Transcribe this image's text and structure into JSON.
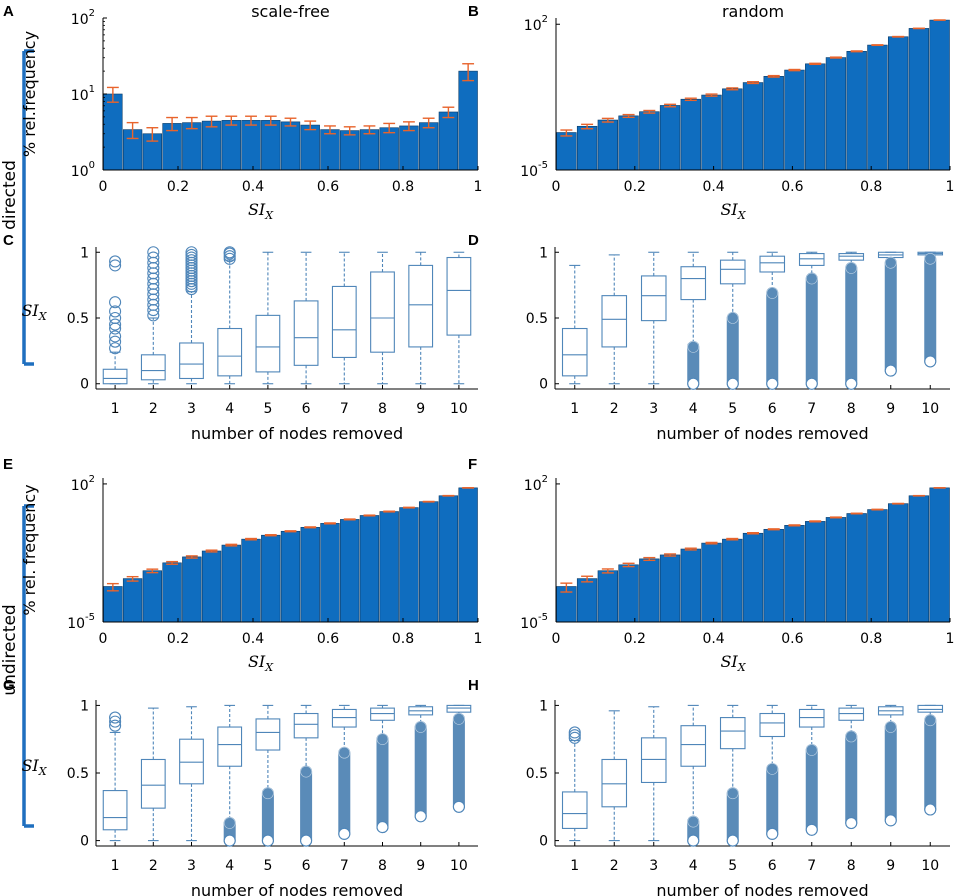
{
  "figure": {
    "row_labels": [
      "directed",
      "undirected"
    ],
    "bracket_color": "#1f6fbf",
    "bar_color": "#0f6dbf",
    "err_color": "#e8642c",
    "box_color": "#4f86b9",
    "out_color": "#5a8bb8"
  },
  "chart_data": [
    {
      "id": "A",
      "type": "bar",
      "panel_label": "A",
      "title": "scale-free",
      "scale": "log",
      "xlabel": "SI",
      "xlabel_sub": "X",
      "ylabel": "% rel.frequency",
      "xlim": [
        0,
        1
      ],
      "xticks": [
        "0",
        "0.2",
        "0.4",
        "0.6",
        "0.8",
        "1"
      ],
      "ylim_exp": [
        0,
        2
      ],
      "yticks": [
        {
          "base": "10",
          "exp": "0",
          "e": 0
        },
        {
          "base": "10",
          "exp": "1",
          "e": 1
        },
        {
          "base": "10",
          "exp": "2",
          "e": 2
        }
      ],
      "values": [
        10,
        3.4,
        3.0,
        4.1,
        4.2,
        4.4,
        4.5,
        4.5,
        4.5,
        4.3,
        3.9,
        3.4,
        3.3,
        3.4,
        3.6,
        3.8,
        4.2,
        5.8,
        20
      ],
      "errors": [
        2.2,
        0.8,
        0.6,
        0.8,
        0.7,
        0.7,
        0.6,
        0.6,
        0.6,
        0.5,
        0.5,
        0.4,
        0.4,
        0.4,
        0.5,
        0.5,
        0.6,
        0.9,
        5
      ]
    },
    {
      "id": "B",
      "type": "bar",
      "panel_label": "B",
      "title": "random",
      "scale": "log",
      "xlabel": "SI",
      "xlabel_sub": "X",
      "ylabel": "",
      "xlim": [
        0,
        1
      ],
      "xticks": [
        "0",
        "0.2",
        "0.4",
        "0.6",
        "0.8",
        "1"
      ],
      "ylim_exp": [
        -5,
        2.3
      ],
      "yticks": [
        {
          "base": "10",
          "exp": "-5",
          "e": -5
        },
        {
          "base": "10",
          "exp": "2",
          "e": 2
        }
      ],
      "values": [
        0.000631,
        0.001259,
        0.002512,
        0.003981,
        0.00631,
        0.01259,
        0.02512,
        0.0398,
        0.0794,
        0.1585,
        0.316,
        0.631,
        1.259,
        2.512,
        5.012,
        10,
        25.12,
        63.1,
        158.5
      ],
      "errors": [
        0.0002,
        0.0003,
        0.0005,
        0.0006,
        0.0009,
        0.0017,
        0.003,
        0.0045,
        0.008,
        0.015,
        0.025,
        0.04,
        0.07,
        0.12,
        0.2,
        0.3,
        0.6,
        1,
        2
      ]
    },
    {
      "id": "C",
      "type": "box",
      "panel_label": "C",
      "xlabel": "number of nodes removed",
      "ylabel": "SI",
      "ylabel_sub": "X",
      "ylim": [
        -0.04,
        1.04
      ],
      "yticks": [
        "0",
        "0.5",
        "1"
      ],
      "categories": [
        "1",
        "2",
        "3",
        "4",
        "5",
        "6",
        "7",
        "8",
        "9",
        "10"
      ],
      "boxes": [
        {
          "q1": 0.0,
          "med": 0.04,
          "q3": 0.11,
          "wlo": 0.0,
          "whi": 0.24
        },
        {
          "q1": 0.03,
          "med": 0.1,
          "q3": 0.22,
          "wlo": 0.0,
          "whi": 0.5
        },
        {
          "q1": 0.04,
          "med": 0.15,
          "q3": 0.31,
          "wlo": 0.0,
          "whi": 0.7
        },
        {
          "q1": 0.06,
          "med": 0.21,
          "q3": 0.42,
          "wlo": 0.0,
          "whi": 0.94
        },
        {
          "q1": 0.09,
          "med": 0.28,
          "q3": 0.52,
          "wlo": 0.0,
          "whi": 1.0
        },
        {
          "q1": 0.14,
          "med": 0.35,
          "q3": 0.63,
          "wlo": 0.0,
          "whi": 1.0
        },
        {
          "q1": 0.2,
          "med": 0.41,
          "q3": 0.74,
          "wlo": 0.0,
          "whi": 1.0
        },
        {
          "q1": 0.24,
          "med": 0.5,
          "q3": 0.85,
          "wlo": 0.0,
          "whi": 1.0
        },
        {
          "q1": 0.28,
          "med": 0.6,
          "q3": 0.9,
          "wlo": 0.0,
          "whi": 1.0
        },
        {
          "q1": 0.37,
          "med": 0.71,
          "q3": 0.96,
          "wlo": 0.0,
          "whi": 1.0
        }
      ],
      "outliers": [
        [
          0.27,
          0.32,
          0.36,
          0.42,
          0.45,
          0.5,
          0.55,
          0.62,
          0.9,
          0.93
        ],
        [
          0.52,
          0.56,
          0.6,
          0.64,
          0.68,
          0.72,
          0.76,
          0.8,
          0.84,
          0.88,
          0.92,
          0.96,
          1.0
        ],
        [
          0.72,
          0.74,
          0.76,
          0.78,
          0.8,
          0.82,
          0.84,
          0.86,
          0.88,
          0.9,
          0.92,
          0.94,
          0.96,
          0.98,
          1.0
        ],
        [
          0.95,
          0.97,
          0.99,
          1.0
        ],
        [],
        [],
        [],
        [],
        [],
        []
      ]
    },
    {
      "id": "D",
      "type": "box",
      "panel_label": "D",
      "xlabel": "number of nodes removed",
      "ylabel": "",
      "ylim": [
        -0.04,
        1.04
      ],
      "yticks": [
        "0",
        "0.5",
        "1"
      ],
      "categories": [
        "1",
        "2",
        "3",
        "4",
        "5",
        "6",
        "7",
        "8",
        "9",
        "10"
      ],
      "boxes": [
        {
          "q1": 0.06,
          "med": 0.22,
          "q3": 0.42,
          "wlo": 0.0,
          "whi": 0.9
        },
        {
          "q1": 0.28,
          "med": 0.49,
          "q3": 0.67,
          "wlo": 0.0,
          "whi": 0.98
        },
        {
          "q1": 0.48,
          "med": 0.67,
          "q3": 0.82,
          "wlo": 0.0,
          "whi": 1.0
        },
        {
          "q1": 0.64,
          "med": 0.8,
          "q3": 0.89,
          "wlo": 0.3,
          "whi": 1.0
        },
        {
          "q1": 0.76,
          "med": 0.87,
          "q3": 0.94,
          "wlo": 0.51,
          "whi": 1.0
        },
        {
          "q1": 0.85,
          "med": 0.92,
          "q3": 0.97,
          "wlo": 0.7,
          "whi": 1.0
        },
        {
          "q1": 0.9,
          "med": 0.95,
          "q3": 0.99,
          "wlo": 0.81,
          "whi": 1.0
        },
        {
          "q1": 0.94,
          "med": 0.97,
          "q3": 0.99,
          "wlo": 0.89,
          "whi": 1.0
        },
        {
          "q1": 0.96,
          "med": 0.98,
          "q3": 1.0,
          "wlo": 0.93,
          "whi": 1.0
        },
        {
          "q1": 0.98,
          "med": 0.99,
          "q3": 1.0,
          "wlo": 0.96,
          "whi": 1.0
        }
      ],
      "outliers": [
        [],
        [],
        [],
        [
          0.0,
          0.28
        ],
        [
          0.0,
          0.5
        ],
        [
          0.0,
          0.69
        ],
        [
          0.0,
          0.8
        ],
        [
          0.0,
          0.88
        ],
        [
          0.1,
          0.92
        ],
        [
          0.17,
          0.95
        ]
      ]
    },
    {
      "id": "E",
      "type": "bar",
      "panel_label": "E",
      "title": "",
      "scale": "log",
      "xlabel": "SI",
      "xlabel_sub": "X",
      "ylabel": "% rel. frequency",
      "xlim": [
        0,
        1
      ],
      "xticks": [
        "0",
        "0.2",
        "0.4",
        "0.6",
        "0.8",
        "1"
      ],
      "ylim_exp": [
        -5,
        2.3
      ],
      "yticks": [
        {
          "base": "10",
          "exp": "-5",
          "e": -5
        },
        {
          "base": "10",
          "exp": "2",
          "e": 2
        }
      ],
      "values": [
        0.000631,
        0.001585,
        0.003981,
        0.01,
        0.01995,
        0.03981,
        0.0794,
        0.1585,
        0.251,
        0.398,
        0.631,
        1.0,
        1.585,
        2.512,
        3.981,
        6.31,
        12.59,
        25.12,
        63.1
      ],
      "errors": [
        0.00025,
        0.0004,
        0.0008,
        0.0015,
        0.0025,
        0.004,
        0.007,
        0.012,
        0.015,
        0.02,
        0.03,
        0.05,
        0.07,
        0.1,
        0.15,
        0.2,
        0.3,
        0.5,
        1
      ]
    },
    {
      "id": "F",
      "type": "bar",
      "panel_label": "F",
      "title": "",
      "scale": "log",
      "xlabel": "SI",
      "xlabel_sub": "X",
      "ylabel": "",
      "xlim": [
        0,
        1
      ],
      "xticks": [
        "0",
        "0.2",
        "0.4",
        "0.6",
        "0.8",
        "1"
      ],
      "ylim_exp": [
        -5,
        2.3
      ],
      "yticks": [
        {
          "base": "10",
          "exp": "-5",
          "e": -5
        },
        {
          "base": "10",
          "exp": "2",
          "e": 2
        }
      ],
      "values": [
        0.000631,
        0.001585,
        0.003981,
        0.00794,
        0.01585,
        0.02512,
        0.0501,
        0.1,
        0.1585,
        0.316,
        0.501,
        0.794,
        1.259,
        2.0,
        3.162,
        5.012,
        10,
        25.12,
        63.1
      ],
      "errors": [
        0.0003,
        0.0005,
        0.0009,
        0.0015,
        0.0025,
        0.003,
        0.005,
        0.008,
        0.012,
        0.02,
        0.025,
        0.04,
        0.06,
        0.08,
        0.1,
        0.15,
        0.25,
        0.4,
        1
      ]
    },
    {
      "id": "G",
      "type": "box",
      "panel_label": "G",
      "xlabel": "number of nodes removed",
      "ylabel": "SI",
      "ylabel_sub": "X",
      "ylim": [
        -0.04,
        1.04
      ],
      "yticks": [
        "0",
        "0.5",
        "1"
      ],
      "categories": [
        "1",
        "2",
        "3",
        "4",
        "5",
        "6",
        "7",
        "8",
        "9",
        "10"
      ],
      "boxes": [
        {
          "q1": 0.08,
          "med": 0.17,
          "q3": 0.37,
          "wlo": 0.0,
          "whi": 0.8
        },
        {
          "q1": 0.24,
          "med": 0.41,
          "q3": 0.6,
          "wlo": 0.0,
          "whi": 0.98
        },
        {
          "q1": 0.42,
          "med": 0.58,
          "q3": 0.75,
          "wlo": 0.0,
          "whi": 0.99
        },
        {
          "q1": 0.55,
          "med": 0.71,
          "q3": 0.84,
          "wlo": 0.13,
          "whi": 1.0
        },
        {
          "q1": 0.67,
          "med": 0.8,
          "q3": 0.9,
          "wlo": 0.35,
          "whi": 1.0
        },
        {
          "q1": 0.76,
          "med": 0.86,
          "q3": 0.94,
          "wlo": 0.51,
          "whi": 1.0
        },
        {
          "q1": 0.84,
          "med": 0.91,
          "q3": 0.97,
          "wlo": 0.65,
          "whi": 1.0
        },
        {
          "q1": 0.89,
          "med": 0.94,
          "q3": 0.98,
          "wlo": 0.75,
          "whi": 1.0
        },
        {
          "q1": 0.93,
          "med": 0.96,
          "q3": 0.99,
          "wlo": 0.84,
          "whi": 1.0
        },
        {
          "q1": 0.95,
          "med": 0.98,
          "q3": 1.0,
          "wlo": 0.9,
          "whi": 1.0
        }
      ],
      "outliers": [
        [
          0.85,
          0.88,
          0.91
        ],
        [],
        [],
        [
          0.0,
          0.13
        ],
        [
          0.0,
          0.35
        ],
        [
          0.0,
          0.51
        ],
        [
          0.05,
          0.65
        ],
        [
          0.1,
          0.75
        ],
        [
          0.18,
          0.84
        ],
        [
          0.25,
          0.9
        ]
      ]
    },
    {
      "id": "H",
      "type": "box",
      "panel_label": "H",
      "xlabel": "number of nodes removed",
      "ylabel": "",
      "ylim": [
        -0.04,
        1.04
      ],
      "yticks": [
        "0",
        "0.5",
        "1"
      ],
      "categories": [
        "1",
        "2",
        "3",
        "4",
        "5",
        "6",
        "7",
        "8",
        "9",
        "10"
      ],
      "boxes": [
        {
          "q1": 0.09,
          "med": 0.2,
          "q3": 0.36,
          "wlo": 0.0,
          "whi": 0.74
        },
        {
          "q1": 0.25,
          "med": 0.42,
          "q3": 0.6,
          "wlo": 0.0,
          "whi": 0.96
        },
        {
          "q1": 0.43,
          "med": 0.6,
          "q3": 0.76,
          "wlo": 0.0,
          "whi": 0.99
        },
        {
          "q1": 0.55,
          "med": 0.71,
          "q3": 0.85,
          "wlo": 0.14,
          "whi": 1.0
        },
        {
          "q1": 0.68,
          "med": 0.81,
          "q3": 0.91,
          "wlo": 0.35,
          "whi": 1.0
        },
        {
          "q1": 0.77,
          "med": 0.87,
          "q3": 0.94,
          "wlo": 0.53,
          "whi": 1.0
        },
        {
          "q1": 0.84,
          "med": 0.91,
          "q3": 0.97,
          "wlo": 0.67,
          "whi": 1.0
        },
        {
          "q1": 0.89,
          "med": 0.94,
          "q3": 0.98,
          "wlo": 0.77,
          "whi": 1.0
        },
        {
          "q1": 0.93,
          "med": 0.96,
          "q3": 0.99,
          "wlo": 0.84,
          "whi": 1.0
        },
        {
          "q1": 0.95,
          "med": 0.97,
          "q3": 1.0,
          "wlo": 0.89,
          "whi": 1.0
        }
      ],
      "outliers": [
        [
          0.76,
          0.78,
          0.8
        ],
        [],
        [],
        [
          0.0,
          0.14
        ],
        [
          0.0,
          0.35
        ],
        [
          0.05,
          0.53
        ],
        [
          0.08,
          0.67
        ],
        [
          0.13,
          0.77
        ],
        [
          0.15,
          0.84
        ],
        [
          0.23,
          0.89
        ]
      ]
    }
  ]
}
